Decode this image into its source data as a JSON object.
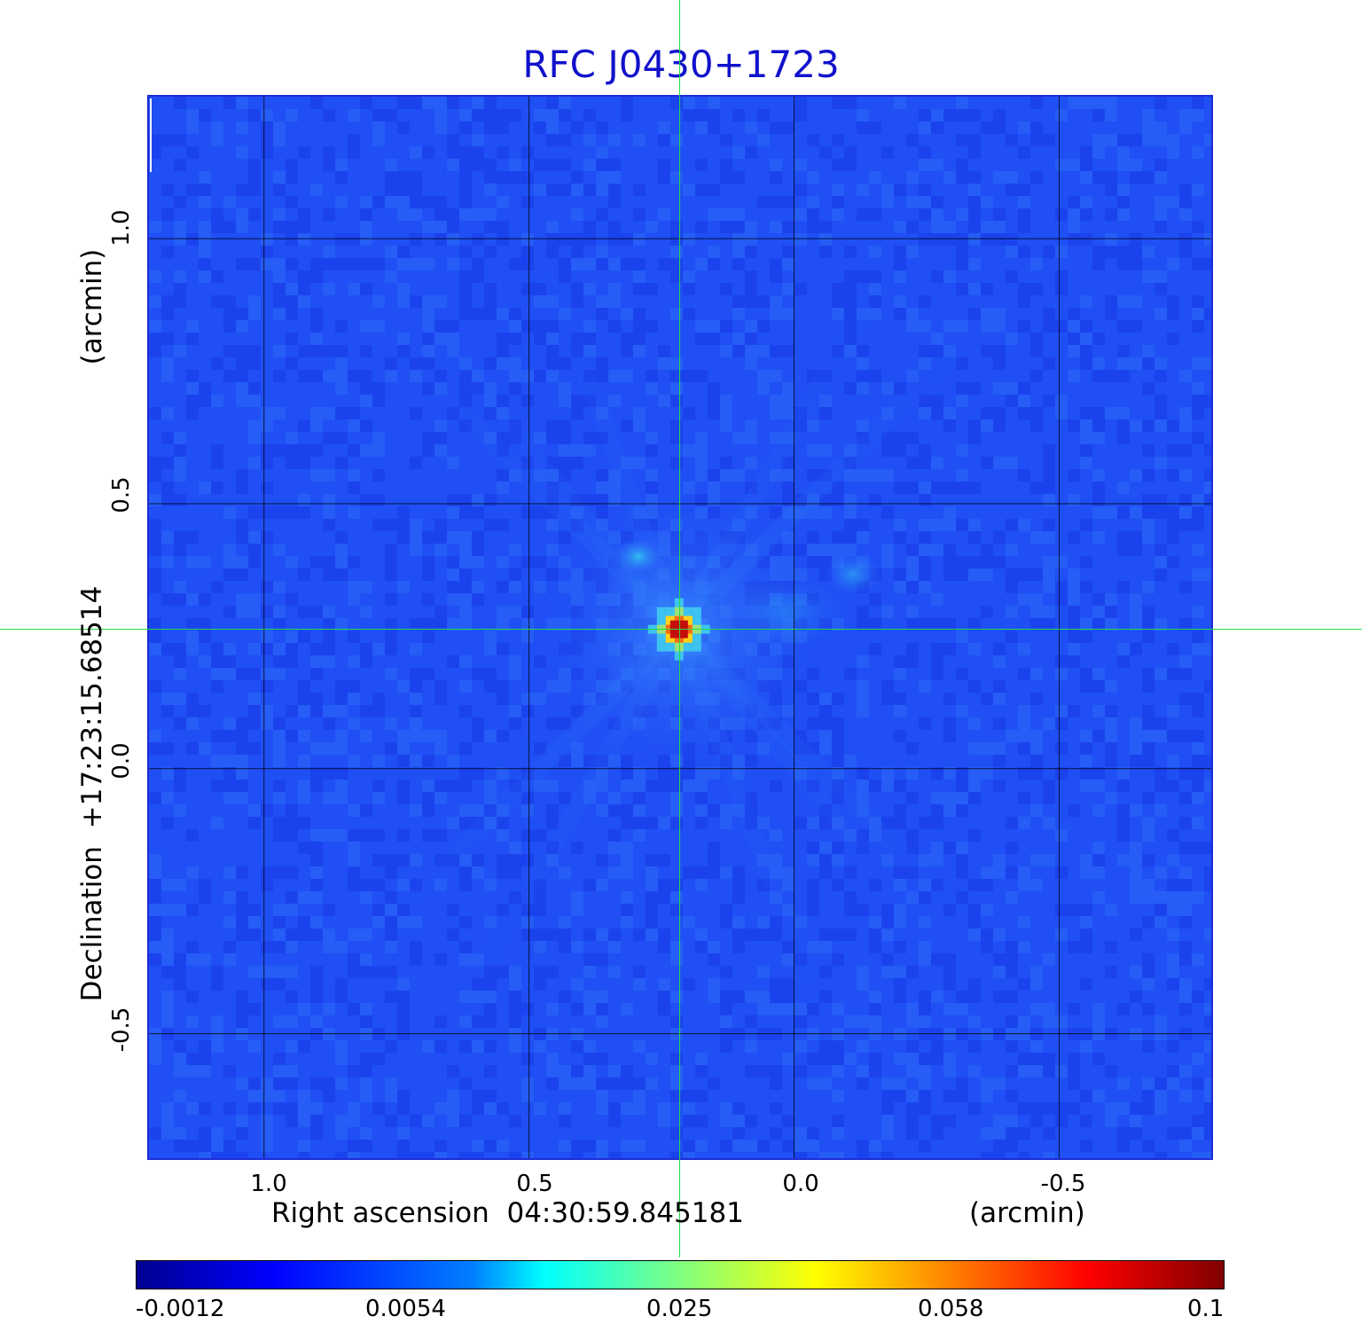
{
  "title": "RFC J0430+1723",
  "axes": {
    "x": {
      "label": "Right ascension  04:30:59.845181",
      "unit": "(arcmin)",
      "ticks": [
        "1.0",
        "0.5",
        "0.0",
        "-0.5"
      ],
      "tick_values": [
        1.0,
        0.5,
        0.0,
        -0.5
      ],
      "range": [
        1.217,
        -0.787
      ],
      "direction": "decreasing-left-to-right"
    },
    "y": {
      "label": "Declination  +17:23:15.68514",
      "unit": "(arcmin)",
      "ticks": [
        "1.0",
        "0.5",
        "0.0",
        "-0.5"
      ],
      "tick_values": [
        1.0,
        0.5,
        0.0,
        -0.5
      ],
      "range": [
        -0.735,
        1.268
      ]
    }
  },
  "grid": true,
  "crosshair": {
    "ra_offset_arcmin": 0.217,
    "dec_offset_arcmin": 0.263,
    "color": "#22dd44"
  },
  "source": {
    "ra_offset_arcmin": 0.217,
    "dec_offset_arcmin": 0.263,
    "peak": 0.1
  },
  "colormap": "jet",
  "colorbar": {
    "ticks": [
      "-0.0012",
      "0.0054",
      "0.025",
      "0.058",
      "0.1"
    ],
    "tick_values": [
      -0.0012,
      0.0054,
      0.025,
      0.058,
      0.1
    ],
    "range": [
      -0.0012,
      0.1
    ]
  },
  "colors": {
    "title": "#1111cc",
    "background_field": "#1f4ff5",
    "grid": "#000000",
    "crosshair": "#22dd44"
  }
}
